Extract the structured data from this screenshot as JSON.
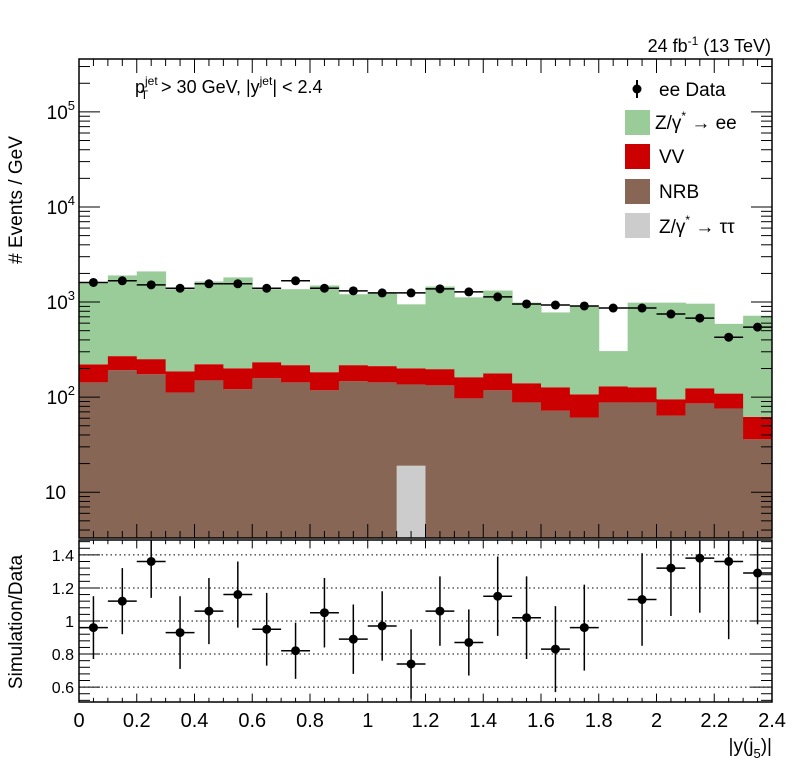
{
  "chart_data": [
    {
      "type": "bar",
      "stacked": true,
      "panel": "main",
      "y_scale": "log",
      "ylim": [
        3.3,
        360000
      ],
      "xlim": [
        0,
        2.4
      ],
      "bin_edges": [
        0,
        0.1,
        0.2,
        0.3,
        0.4,
        0.5,
        0.6,
        0.7,
        0.8,
        0.9,
        1.0,
        1.1,
        1.2,
        1.3,
        1.4,
        1.5,
        1.6,
        1.7,
        1.8,
        1.9,
        2.0,
        2.1,
        2.2,
        2.3,
        2.4
      ],
      "ylabel": "# Events / GeV",
      "lumi": {
        "main": "24 fb",
        "sup": "-1",
        "tail": " (13 TeV)"
      },
      "annotation": {
        "p": "p",
        "sub": "T",
        "sup": "jet",
        "mid": " > 30 GeV,  |y",
        "sup2": "jet",
        "end": "| < 2.4"
      },
      "y_ticks": [
        {
          "value": 10,
          "base": "10",
          "exp": ""
        },
        {
          "value": 100,
          "base": "10",
          "exp": "2"
        },
        {
          "value": 1000,
          "base": "10",
          "exp": "3"
        },
        {
          "value": 10000,
          "base": "10",
          "exp": "4"
        },
        {
          "value": 100000,
          "base": "10",
          "exp": "5"
        }
      ],
      "series": [
        {
          "name": "Z/γ* → ττ",
          "key": "tautau",
          "color": "#cccccc",
          "values": [
            0,
            0,
            0,
            0,
            0,
            0,
            0,
            0,
            0,
            0,
            0,
            19,
            0,
            0,
            0,
            0,
            0,
            0,
            0,
            0,
            0,
            0,
            0,
            0
          ]
        },
        {
          "name": "NRB",
          "key": "nrb",
          "color": "#886655",
          "values": [
            143,
            192,
            174,
            112,
            150,
            121,
            158,
            143,
            118,
            147,
            143,
            117,
            133,
            97,
            118,
            88,
            72,
            61,
            88,
            88,
            64,
            86,
            76,
            36
          ]
        },
        {
          "name": "VV",
          "key": "vv",
          "color": "#cc0000",
          "values": [
            78,
            78,
            77,
            75,
            72,
            80,
            75,
            74,
            65,
            70,
            69,
            65,
            64,
            65,
            60,
            52,
            55,
            46,
            42,
            39,
            31,
            38,
            33,
            26
          ]
        },
        {
          "name": "Z/γ* → ee",
          "key": "zee",
          "color": "#99cc99",
          "values": [
            1359,
            1635,
            1849,
            1178,
            1423,
            1614,
            1132,
            1148,
            1310,
            991,
            1025,
            745,
            1259,
            960,
            1143,
            846,
            651,
            803,
            175,
            859,
            891,
            838,
            481,
            656
          ]
        }
      ],
      "data": {
        "name": "ee Data",
        "values": [
          1607,
          1675,
          1518,
          1397,
          1556,
          1556,
          1397,
          1675,
          1397,
          1312,
          1248,
          1248,
          1377,
          1279,
          1132,
          955,
          931,
          910,
          865,
          865,
          748,
          678,
          427,
          545
        ],
        "rel_err": [
          0.03,
          0.03,
          0.03,
          0.03,
          0.03,
          0.03,
          0.03,
          0.03,
          0.03,
          0.03,
          0.03,
          0.03,
          0.04,
          0.04,
          0.04,
          0.05,
          0.05,
          0.05,
          0.06,
          0.06,
          0.07,
          0.08,
          0.1,
          0.09
        ]
      },
      "legend": {
        "position": "top-right",
        "items": [
          {
            "key": "data",
            "label": "ee Data",
            "sup": "",
            "tail": ""
          },
          {
            "key": "zee",
            "label": "Z/γ",
            "sup": "*",
            "tail": " → ee"
          },
          {
            "key": "vv",
            "label": "VV",
            "sup": "",
            "tail": ""
          },
          {
            "key": "nrb",
            "label": "NRB",
            "sup": "",
            "tail": ""
          },
          {
            "key": "tautau",
            "label": "Z/γ",
            "sup": "*",
            "tail": " → ττ"
          }
        ]
      }
    },
    {
      "type": "scatter",
      "panel": "ratio",
      "ylabel": "Simulation/Data",
      "xlabel": {
        "main": "|y(j",
        "sub": "5",
        "end": ")|"
      },
      "ylim": [
        0.51,
        1.49
      ],
      "xlim": [
        0,
        2.4
      ],
      "grid": [
        0.6,
        0.8,
        1.0,
        1.2,
        1.4
      ],
      "y_tick_labels": [
        "0.6",
        "0.8",
        "1",
        "1.2",
        "1.4"
      ],
      "x_tick_labels": [
        "0",
        "0.2",
        "0.4",
        "0.6",
        "0.8",
        "1",
        "1.2",
        "1.4",
        "1.6",
        "1.8",
        "2",
        "2.2",
        "2.4"
      ],
      "x_centers": [
        0.05,
        0.15,
        0.25,
        0.35,
        0.45,
        0.55,
        0.65,
        0.75,
        0.85,
        0.95,
        1.05,
        1.15,
        1.25,
        1.35,
        1.45,
        1.55,
        1.65,
        1.75,
        1.85,
        1.95,
        2.05,
        2.15,
        2.25,
        2.35
      ],
      "values": [
        0.96,
        1.12,
        1.36,
        0.93,
        1.06,
        1.16,
        0.95,
        0.82,
        1.05,
        0.89,
        0.97,
        0.74,
        1.06,
        0.87,
        1.15,
        1.02,
        0.83,
        0.96,
        null,
        1.13,
        1.32,
        1.38,
        1.36,
        1.29
      ],
      "errors": [
        0.19,
        0.2,
        0.22,
        0.22,
        0.2,
        0.2,
        0.22,
        0.17,
        0.21,
        0.21,
        0.21,
        0.21,
        0.21,
        0.2,
        0.24,
        0.25,
        0.26,
        0.26,
        null,
        0.28,
        0.29,
        0.33,
        0.47,
        0.31
      ]
    }
  ]
}
